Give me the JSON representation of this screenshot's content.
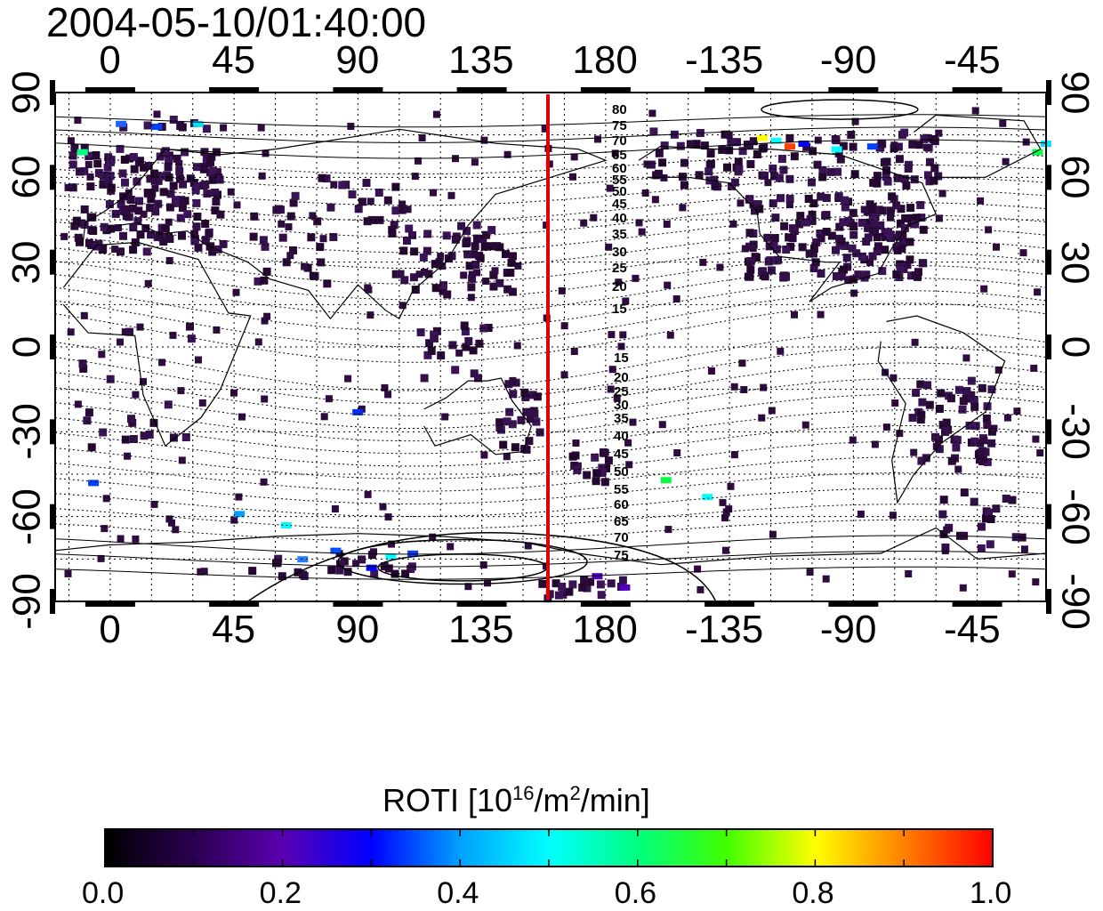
{
  "title": "2004-05-10/01:40:00",
  "x_ticks_top": [
    "0",
    "45",
    "90",
    "135",
    "180",
    "-135",
    "-90",
    "-45"
  ],
  "x_ticks_bottom": [
    "0",
    "45",
    "90",
    "135",
    "180",
    "-135",
    "-90",
    "-45"
  ],
  "y_ticks_left": [
    "90",
    "60",
    "30",
    "0",
    "-30",
    "-60",
    "-90"
  ],
  "y_ticks_right": [
    "90",
    "60",
    "30",
    "0",
    "-30",
    "-60",
    "-90"
  ],
  "contour_labels_north": [
    "80",
    "75",
    "70",
    "65",
    "60",
    "55",
    "50",
    "45",
    "40",
    "35",
    "30",
    "25",
    "20",
    "15"
  ],
  "contour_labels_south": [
    "15",
    "20",
    "25",
    "30",
    "35",
    "40",
    "45",
    "50",
    "55",
    "60",
    "65",
    "70",
    "75"
  ],
  "colorbar": {
    "label_main": "ROTI  [10",
    "label_sup1": "16",
    "label_mid": "/m",
    "label_sup2": "2",
    "label_end": "/min]",
    "ticks": [
      "0.0",
      "0.2",
      "0.4",
      "0.6",
      "0.8",
      "1.0"
    ],
    "colors": [
      "#000000",
      "#2a0050",
      "#5a00b0",
      "#0000ff",
      "#00a0ff",
      "#00ffff",
      "#00ff80",
      "#40ff00",
      "#ffff00",
      "#ff8000",
      "#ff0000"
    ]
  },
  "marker_line": {
    "longitude": 155,
    "color": "#e00000"
  },
  "chart_data": {
    "type": "heatmap",
    "x_range": [
      -20,
      340
    ],
    "y_range": [
      -90,
      90
    ],
    "value_range": [
      0.0,
      1.0
    ],
    "grid": true
  }
}
